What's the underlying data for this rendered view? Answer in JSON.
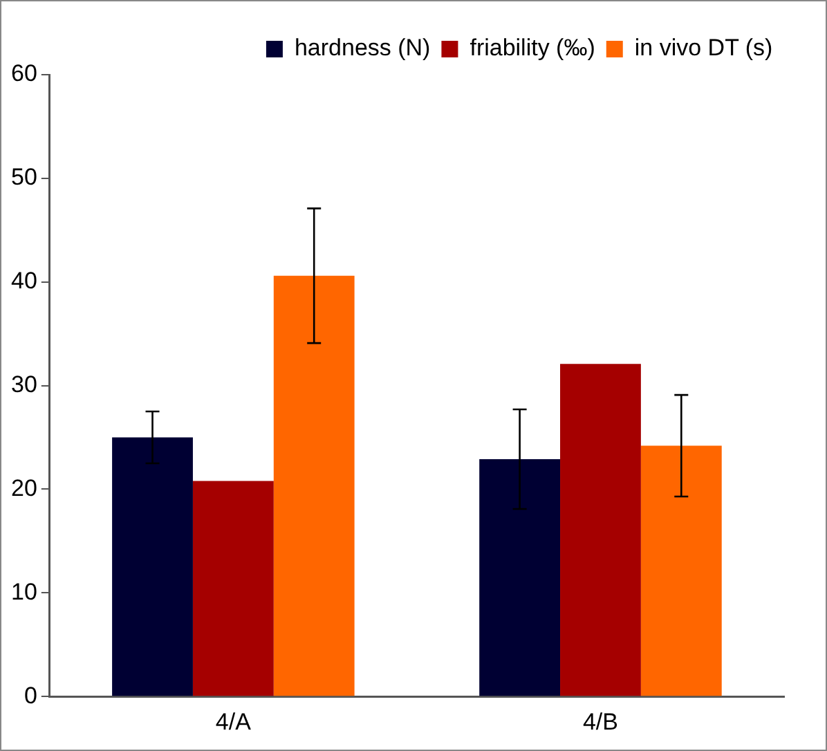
{
  "chart_data": {
    "type": "bar",
    "categories": [
      "4/A",
      "4/B"
    ],
    "series": [
      {
        "name": "hardness (N)",
        "color": "#000033",
        "values": [
          25.0,
          22.9
        ],
        "errors": [
          2.5,
          4.8
        ]
      },
      {
        "name": "friability (‰)",
        "color": "#a50000",
        "values": [
          20.8,
          32.1
        ]
      },
      {
        "name": "in vivo DT (s)",
        "color": "#ff6600",
        "values": [
          40.6,
          24.2
        ],
        "errors": [
          6.5,
          4.9
        ]
      }
    ],
    "ylim": [
      0,
      60
    ],
    "yticks": [
      0,
      10,
      20,
      30,
      40,
      50,
      60
    ],
    "grid": false,
    "legend": "top right"
  }
}
